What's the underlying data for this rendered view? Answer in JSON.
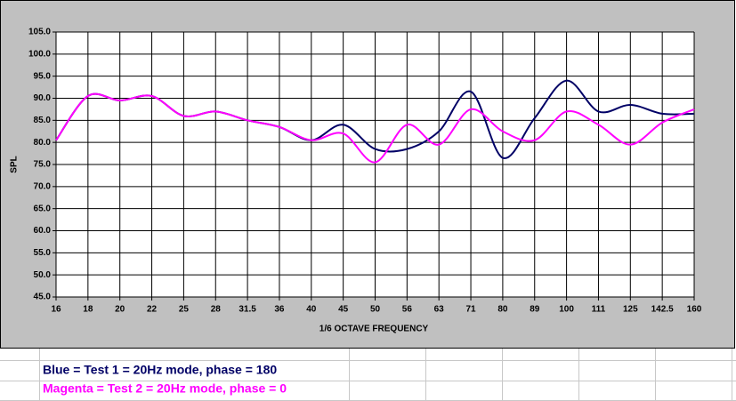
{
  "chart_data": {
    "type": "line",
    "x_label": "1/6 OCTAVE FREQUENCY",
    "y_label": "SPL",
    "categories": [
      "16",
      "18",
      "20",
      "22",
      "25",
      "28",
      "31.5",
      "36",
      "40",
      "45",
      "50",
      "56",
      "63",
      "71",
      "80",
      "89",
      "100",
      "111",
      "125",
      "142.5",
      "160"
    ],
    "series": [
      {
        "name": "Blue = Test 1 = 20Hz mode, phase = 180",
        "color": "#000066",
        "values": [
          80.5,
          90.5,
          89.5,
          90.5,
          86,
          87,
          85,
          83.5,
          80.5,
          84,
          78.5,
          78.5,
          82.5,
          91.5,
          76.5,
          85.5,
          94,
          87,
          88.5,
          86.5,
          86.5
        ]
      },
      {
        "name": "Magenta = Test 2 = 20Hz mode, phase = 0",
        "color": "#ff00ff",
        "values": [
          80.5,
          90.5,
          89.5,
          90.5,
          86,
          87,
          85,
          83.5,
          80.5,
          82,
          75.5,
          84,
          79.5,
          87.5,
          82.5,
          80.5,
          87,
          84,
          79.5,
          84.5,
          87.5
        ]
      }
    ],
    "ylim": [
      45,
      105
    ],
    "yticks": [
      {
        "value": 45,
        "label": "45.0"
      },
      {
        "value": 50,
        "label": "50.0"
      },
      {
        "value": 55,
        "label": "55.0"
      },
      {
        "value": 60,
        "label": "60.0"
      },
      {
        "value": 65,
        "label": "65.0"
      },
      {
        "value": 70,
        "label": "70.0"
      },
      {
        "value": 75,
        "label": "75.0"
      },
      {
        "value": 80,
        "label": "80.0"
      },
      {
        "value": 85,
        "label": "85.0"
      },
      {
        "value": 90,
        "label": "90.0"
      },
      {
        "value": 95,
        "label": "95.0"
      },
      {
        "value": 100,
        "label": "100.0"
      },
      {
        "value": 105,
        "label": "105.0"
      }
    ],
    "grid": true
  }
}
